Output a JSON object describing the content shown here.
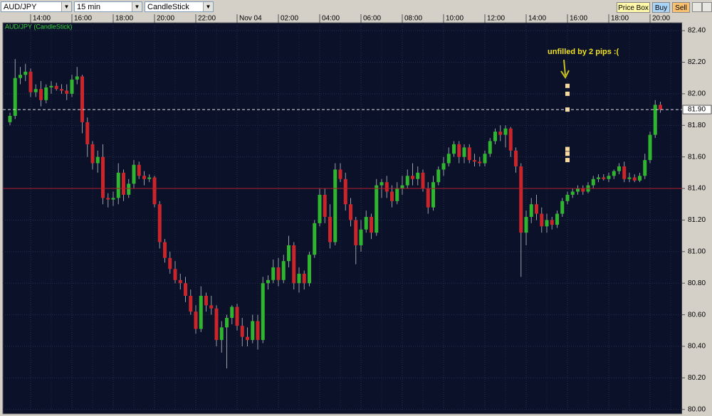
{
  "toolbar": {
    "symbol": "AUD/JPY",
    "interval": "15 min",
    "chart_type": "CandleStick",
    "buttons": [
      "Price Box",
      "Buy",
      "Sell"
    ]
  },
  "chart_data": {
    "type": "candlestick",
    "title": "AUD/JPY (CandleStick)",
    "categories": [
      null,
      null,
      null,
      null,
      "14:00",
      null,
      null,
      null,
      null,
      null,
      null,
      null,
      "16:00",
      null,
      null,
      null,
      null,
      null,
      null,
      null,
      "18:00",
      null,
      null,
      null,
      null,
      null,
      null,
      null,
      "20:00",
      null,
      null,
      null,
      null,
      null,
      null,
      null,
      "22:00",
      null,
      null,
      null,
      null,
      null,
      null,
      null,
      "Nov 04",
      null,
      null,
      null,
      null,
      null,
      null,
      null,
      "02:00",
      null,
      null,
      null,
      null,
      null,
      null,
      null,
      "04:00",
      null,
      null,
      null,
      null,
      null,
      null,
      null,
      "06:00",
      null,
      null,
      null,
      null,
      null,
      null,
      null,
      "08:00",
      null,
      null,
      null,
      null,
      null,
      null,
      null,
      "10:00",
      null,
      null,
      null,
      null,
      null,
      null,
      null,
      "12:00",
      null,
      null,
      null,
      null,
      null,
      null,
      null,
      "14:00",
      null,
      null,
      null,
      null,
      null,
      null,
      null,
      "16:00",
      null,
      null,
      null,
      null,
      null,
      null,
      null,
      "18:00",
      null,
      null,
      null,
      null,
      null,
      null,
      null,
      "20:00",
      null,
      null
    ],
    "open": [
      81.82,
      81.86,
      82.1,
      82.12,
      82.14,
      82.01,
      82.03,
      81.96,
      82.04,
      82.05,
      82.03,
      82.02,
      82.0,
      82.09,
      82.11,
      81.82,
      81.68,
      81.56,
      81.6,
      81.34,
      81.33,
      81.34,
      81.5,
      81.36,
      81.43,
      81.55,
      81.48,
      81.46,
      81.47,
      81.3,
      81.06,
      80.96,
      80.89,
      80.82,
      80.8,
      80.72,
      80.62,
      80.51,
      80.72,
      80.66,
      80.64,
      80.44,
      80.52,
      80.58,
      80.65,
      80.53,
      80.46,
      80.44,
      80.56,
      80.44,
      80.8,
      80.82,
      80.9,
      80.82,
      80.94,
      81.04,
      80.8,
      80.86,
      80.8,
      80.98,
      81.18,
      81.36,
      81.22,
      81.06,
      81.52,
      81.46,
      81.3,
      81.2,
      81.04,
      81.14,
      81.22,
      81.12,
      81.42,
      81.44,
      81.38,
      81.32,
      81.4,
      81.42,
      81.48,
      81.46,
      81.5,
      81.4,
      81.28,
      81.44,
      81.52,
      81.56,
      81.62,
      81.68,
      81.6,
      81.66,
      81.58,
      81.57,
      81.56,
      81.62,
      81.7,
      81.76,
      81.74,
      81.78,
      81.64,
      81.54,
      81.12,
      81.22,
      81.3,
      81.24,
      81.16,
      81.2,
      81.17,
      81.24,
      81.32,
      81.36,
      81.38,
      81.4,
      81.38,
      81.42,
      81.46,
      81.47,
      81.46,
      81.48,
      81.51,
      81.54,
      81.46,
      81.47,
      81.45,
      81.48,
      81.58,
      81.74,
      81.93
    ],
    "high": [
      81.88,
      82.22,
      82.17,
      82.19,
      82.16,
      82.06,
      82.08,
      82.06,
      82.08,
      82.07,
      82.06,
      82.06,
      82.12,
      82.17,
      82.12,
      81.85,
      81.7,
      81.64,
      81.68,
      81.37,
      81.38,
      81.56,
      81.52,
      81.46,
      81.58,
      81.57,
      81.51,
      81.49,
      81.48,
      81.32,
      81.08,
      81.0,
      80.94,
      80.86,
      80.84,
      80.76,
      80.66,
      80.78,
      80.74,
      80.72,
      80.66,
      80.56,
      80.6,
      80.66,
      80.67,
      80.58,
      80.52,
      80.6,
      80.6,
      80.84,
      80.85,
      80.95,
      80.96,
      80.98,
      81.1,
      81.06,
      80.9,
      80.88,
      81.0,
      81.2,
      81.4,
      81.4,
      81.3,
      81.56,
      81.56,
      81.5,
      81.34,
      81.22,
      81.2,
      81.26,
      81.24,
      81.46,
      81.46,
      81.48,
      81.42,
      81.44,
      81.48,
      81.52,
      81.56,
      81.54,
      81.52,
      81.44,
      81.48,
      81.54,
      81.6,
      81.66,
      81.7,
      81.7,
      81.68,
      81.68,
      81.62,
      81.6,
      81.64,
      81.72,
      81.78,
      81.8,
      81.8,
      81.79,
      81.66,
      81.56,
      81.26,
      81.34,
      81.36,
      81.28,
      81.24,
      81.22,
      81.26,
      81.34,
      81.38,
      81.4,
      81.42,
      81.42,
      81.44,
      81.48,
      81.49,
      81.49,
      81.5,
      81.52,
      81.56,
      81.57,
      81.5,
      81.49,
      81.5,
      81.62,
      81.76,
      81.96,
      81.95
    ],
    "low": [
      81.8,
      81.84,
      82.06,
      82.08,
      81.98,
      81.98,
      81.92,
      81.94,
      82.0,
      82.02,
      82.0,
      81.96,
      81.98,
      82.06,
      81.75,
      81.6,
      81.52,
      81.5,
      81.3,
      81.28,
      81.29,
      81.3,
      81.32,
      81.34,
      81.4,
      81.46,
      81.42,
      81.44,
      81.28,
      81.02,
      80.93,
      80.86,
      80.8,
      80.76,
      80.68,
      80.6,
      80.48,
      80.49,
      80.62,
      80.6,
      80.4,
      80.36,
      80.26,
      80.54,
      80.5,
      80.4,
      80.4,
      80.42,
      80.38,
      80.42,
      80.76,
      80.8,
      80.78,
      80.8,
      80.9,
      80.76,
      80.74,
      80.76,
      80.78,
      80.96,
      81.16,
      81.18,
      81.02,
      81.04,
      81.44,
      81.26,
      81.16,
      80.92,
      81.0,
      81.12,
      81.08,
      81.1,
      81.34,
      81.34,
      81.28,
      81.3,
      81.36,
      81.4,
      81.42,
      81.42,
      81.38,
      81.24,
      81.26,
      81.42,
      81.48,
      81.54,
      81.6,
      81.56,
      81.56,
      81.56,
      81.54,
      81.54,
      81.54,
      81.6,
      81.68,
      81.7,
      81.66,
      81.6,
      81.5,
      80.84,
      81.04,
      81.18,
      81.2,
      81.12,
      81.12,
      81.14,
      81.15,
      81.22,
      81.3,
      81.34,
      81.36,
      81.36,
      81.37,
      81.4,
      81.44,
      81.45,
      81.44,
      81.46,
      81.49,
      81.44,
      81.44,
      81.44,
      81.44,
      81.46,
      81.56,
      81.72,
      81.88
    ],
    "close": [
      81.86,
      82.1,
      82.12,
      82.14,
      82.01,
      82.03,
      81.96,
      82.04,
      82.05,
      82.03,
      82.02,
      82.0,
      82.09,
      82.11,
      81.82,
      81.68,
      81.56,
      81.6,
      81.34,
      81.33,
      81.34,
      81.5,
      81.36,
      81.43,
      81.55,
      81.48,
      81.46,
      81.47,
      81.3,
      81.06,
      80.96,
      80.89,
      80.82,
      80.8,
      80.72,
      80.62,
      80.51,
      80.72,
      80.66,
      80.64,
      80.44,
      80.52,
      80.58,
      80.65,
      80.53,
      80.46,
      80.44,
      80.56,
      80.44,
      80.8,
      80.82,
      80.9,
      80.82,
      80.94,
      81.04,
      80.8,
      80.86,
      80.8,
      80.98,
      81.18,
      81.36,
      81.22,
      81.06,
      81.52,
      81.46,
      81.3,
      81.2,
      81.04,
      81.14,
      81.22,
      81.12,
      81.42,
      81.44,
      81.38,
      81.32,
      81.4,
      81.42,
      81.48,
      81.46,
      81.5,
      81.4,
      81.28,
      81.44,
      81.52,
      81.56,
      81.62,
      81.68,
      81.6,
      81.66,
      81.58,
      81.57,
      81.56,
      81.62,
      81.7,
      81.76,
      81.74,
      81.78,
      81.64,
      81.54,
      81.12,
      81.22,
      81.3,
      81.24,
      81.16,
      81.2,
      81.17,
      81.24,
      81.32,
      81.36,
      81.38,
      81.4,
      81.38,
      81.42,
      81.46,
      81.47,
      81.46,
      81.48,
      81.51,
      81.54,
      81.46,
      81.47,
      81.45,
      81.48,
      81.58,
      81.74,
      81.93,
      81.9
    ],
    "up_color": "#2fb52f",
    "down_color": "#c9252b",
    "ylim": [
      79.99,
      82.45
    ],
    "yticks": [
      {
        "value": 80,
        "label": "80.00"
      },
      {
        "value": 80.2,
        "label": "80.20"
      },
      {
        "value": 80.4,
        "label": "80.40"
      },
      {
        "value": 80.6,
        "label": "80.60"
      },
      {
        "value": 80.8,
        "label": "80.80"
      },
      {
        "value": 81,
        "label": "81.00"
      },
      {
        "value": 81.2,
        "label": "81.20"
      },
      {
        "value": 81.4,
        "label": "81.40"
      },
      {
        "value": 81.6,
        "label": "81.60"
      },
      {
        "value": 81.8,
        "label": "81.80"
      },
      {
        "value": 82,
        "label": "82.00"
      },
      {
        "value": 82.2,
        "label": "82.20"
      },
      {
        "value": 82.4,
        "label": "82.40"
      }
    ],
    "grid": true,
    "level_line": {
      "value": 81.4,
      "color": "#b0202a"
    },
    "price_line": {
      "value": 81.9,
      "label": "81.90"
    },
    "orders": {
      "prices": [
        82.05,
        82.0,
        81.9,
        81.65,
        81.62,
        81.58
      ],
      "color": "#f5d9a0"
    },
    "annotation": "unfilled by 2 pips :("
  }
}
